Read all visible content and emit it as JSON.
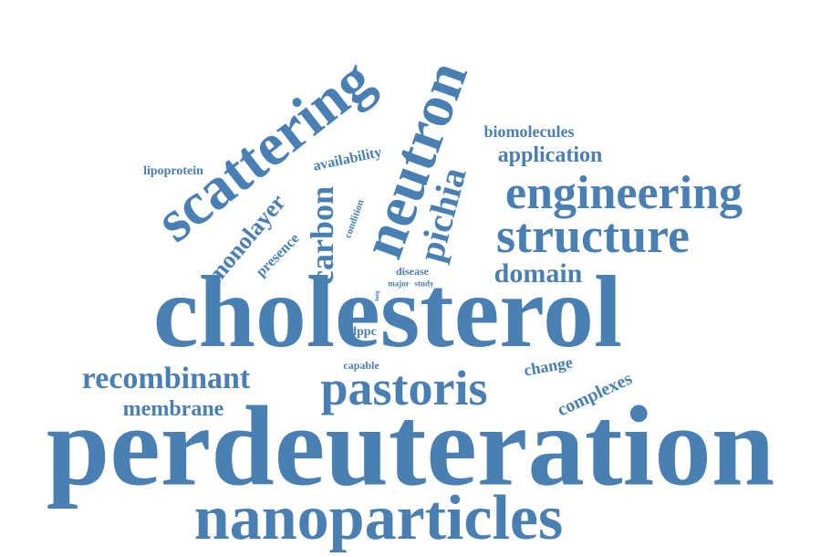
{
  "cloud": {
    "accent_color": "#4a7fb3",
    "words": {
      "perdeuteration": "perdeuteration",
      "cholesterol": "cholesterol",
      "nanoparticles": "nanoparticles",
      "neutron": "neutron",
      "scattering": "scattering",
      "engineering": "engineering",
      "structure": "structure",
      "pastoris": "pastoris",
      "recombinant": "recombinant",
      "pichia": "pichia",
      "carbon": "carbon",
      "domain": "domain",
      "membrane": "membrane",
      "monolayer": "monolayer",
      "application": "application",
      "biomolecules": "biomolecules",
      "complexes": "complexes",
      "presence": "presence",
      "availability": "availability",
      "lipoprotein": "lipoprotein",
      "change": "change",
      "dppc": "dppc",
      "capable": "capable",
      "disease": "disease",
      "condition": "condition",
      "major": "major",
      "study": "study",
      "lung": "lung"
    }
  }
}
